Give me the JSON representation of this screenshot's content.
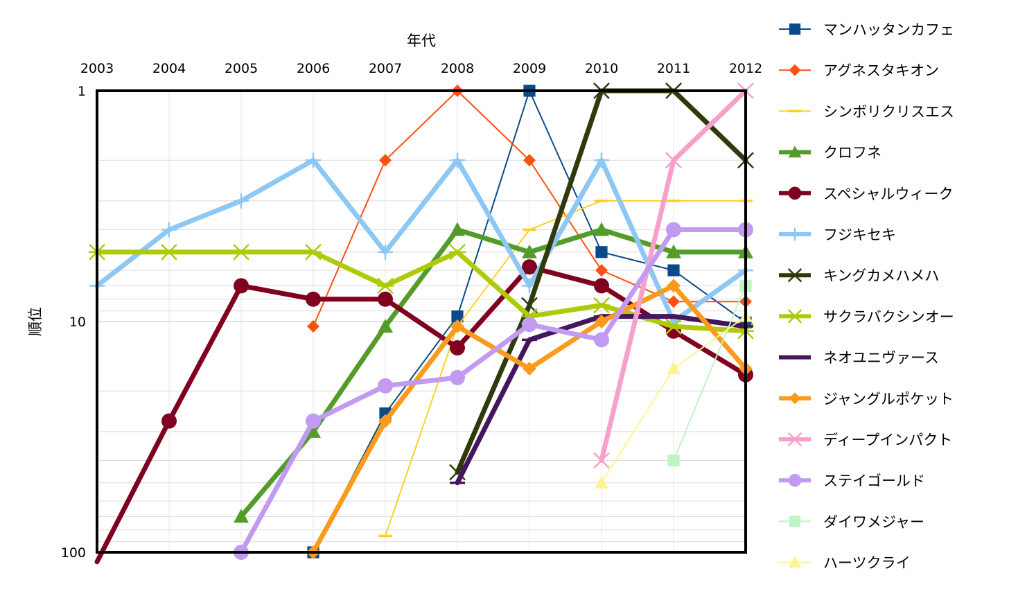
{
  "chart_data": {
    "type": "line",
    "title": "",
    "xlabel": "年代",
    "ylabel": "順位",
    "x": [
      2003,
      2004,
      2005,
      2006,
      2007,
      2008,
      2009,
      2010,
      2011,
      2012
    ],
    "x_tick_labels": [
      "2003",
      "2004",
      "2005",
      "2006",
      "2007",
      "2008",
      "2009",
      "2010",
      "2011",
      "2012"
    ],
    "y_scale": "log",
    "y_inverted": true,
    "ylim": [
      1,
      100
    ],
    "y_tick_labels": [
      "1",
      "10",
      "100"
    ],
    "x_axis_position": "top",
    "grid": "minor horizontal gridlines",
    "legend_position": "right",
    "series": [
      {
        "name": "マンハッタンカフェ",
        "color": "#0b4a8a",
        "width": 2,
        "marker": "square",
        "values": [
          null,
          null,
          null,
          100,
          25,
          9.5,
          1,
          5,
          6,
          10.1
        ]
      },
      {
        "name": "アグネスタキオン",
        "color": "#ff4f12",
        "width": 2,
        "marker": "diamond",
        "values": [
          null,
          null,
          null,
          10.5,
          2,
          1,
          2,
          6,
          8.2,
          8.2
        ]
      },
      {
        "name": "シンボリクリスエス",
        "color": "#ffd21c",
        "width": 2,
        "marker": "dash",
        "values": [
          null,
          null,
          null,
          null,
          85,
          10.5,
          4,
          3,
          3,
          3
        ]
      },
      {
        "name": "クロフネ",
        "color": "#539c2a",
        "width": 7,
        "marker": "triangle",
        "values": [
          null,
          null,
          70,
          30,
          10.5,
          4,
          5,
          4,
          5,
          5
        ]
      },
      {
        "name": "スペシャルウィーク",
        "color": "#800020",
        "width": 7,
        "marker": "circle",
        "values": [
          110,
          27,
          7,
          8,
          8,
          13,
          5.8,
          7,
          11,
          17
        ]
      },
      {
        "name": "フジキセキ",
        "color": "#8cc8f3",
        "width": 7,
        "marker": "plus",
        "values": [
          7,
          4,
          3,
          2,
          5,
          2,
          7,
          2,
          10,
          6
        ]
      },
      {
        "name": "キングカメハメハ",
        "color": "#2f3a0c",
        "width": 7,
        "marker": "x",
        "values": [
          null,
          null,
          null,
          null,
          null,
          45,
          8.5,
          1,
          1,
          2
        ]
      },
      {
        "name": "サクラバクシンオー",
        "color": "#aecb09",
        "width": 7,
        "marker": "asterisk",
        "values": [
          5,
          5,
          5,
          5,
          7,
          5,
          9.5,
          8.5,
          10.5,
          11
        ]
      },
      {
        "name": "ネオユニヴァース",
        "color": "#45155e",
        "width": 7,
        "marker": "dash",
        "values": [
          null,
          null,
          null,
          null,
          null,
          50,
          12,
          9.5,
          9.5,
          10.5
        ]
      },
      {
        "name": "ジャングルポケット",
        "color": "#fb9b1d",
        "width": 7,
        "marker": "diamond",
        "values": [
          null,
          null,
          null,
          100,
          27,
          10.5,
          16,
          10,
          7,
          16
        ]
      },
      {
        "name": "ディープインパクト",
        "color": "#f8a0cc",
        "width": 7,
        "marker": "x",
        "values": [
          null,
          null,
          null,
          null,
          null,
          null,
          null,
          40,
          2,
          1
        ]
      },
      {
        "name": "ステイゴールド",
        "color": "#c39af2",
        "width": 7,
        "marker": "circle",
        "values": [
          null,
          null,
          100,
          27,
          19,
          17.5,
          10.3,
          12,
          4,
          4
        ]
      },
      {
        "name": "ダイワメジャー",
        "color": "#bff4c4",
        "width": 2,
        "marker": "square",
        "values": [
          null,
          null,
          null,
          null,
          null,
          null,
          null,
          null,
          40,
          7
        ]
      },
      {
        "name": "ハーツクライ",
        "color": "#fcf58e",
        "width": 2,
        "marker": "triangle",
        "values": [
          null,
          null,
          null,
          null,
          null,
          null,
          null,
          50,
          16,
          9.5
        ]
      }
    ]
  }
}
